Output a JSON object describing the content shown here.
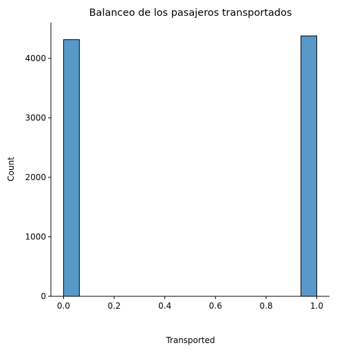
{
  "chart_data": {
    "type": "bar",
    "title": "Balanceo de los pasajeros transportados",
    "xlabel": "Transported",
    "ylabel": "Count",
    "xlim": [
      -0.05,
      1.05
    ],
    "ylim": [
      0,
      4600
    ],
    "x_ticks": [
      0.0,
      0.2,
      0.4,
      0.6,
      0.8,
      1.0
    ],
    "x_tick_labels": [
      "0.0",
      "0.2",
      "0.4",
      "0.6",
      "0.8",
      "1.0"
    ],
    "y_ticks": [
      0,
      1000,
      2000,
      3000,
      4000
    ],
    "y_tick_labels": [
      "0",
      "1000",
      "2000",
      "3000",
      "4000"
    ],
    "bin_width": 0.0625,
    "bars": [
      {
        "x_start": 0.0,
        "x_end": 0.0625,
        "value": 4315
      },
      {
        "x_start": 0.9375,
        "x_end": 1.0,
        "value": 4378
      }
    ],
    "bar_color": "#5799c9",
    "edge_color": "#000000",
    "grid": false,
    "legend": "none"
  }
}
